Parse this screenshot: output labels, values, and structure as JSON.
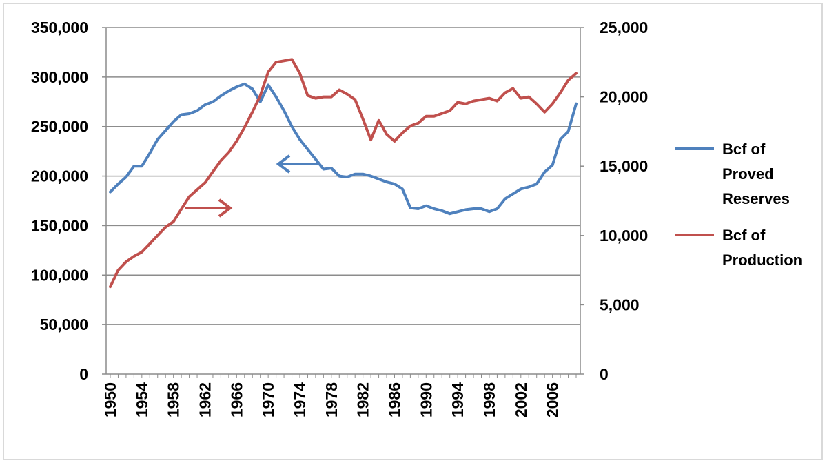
{
  "chart_data": {
    "type": "line",
    "title": "",
    "xlabel": "",
    "ylabel": "",
    "y2label": "",
    "x": [
      1950,
      1951,
      1952,
      1953,
      1954,
      1955,
      1956,
      1957,
      1958,
      1959,
      1960,
      1961,
      1962,
      1963,
      1964,
      1965,
      1966,
      1967,
      1968,
      1969,
      1970,
      1971,
      1972,
      1973,
      1974,
      1975,
      1976,
      1977,
      1978,
      1979,
      1980,
      1981,
      1982,
      1983,
      1984,
      1985,
      1986,
      1987,
      1988,
      1989,
      1990,
      1991,
      1992,
      1993,
      1994,
      1995,
      1996,
      1997,
      1998,
      1999,
      2000,
      2001,
      2002,
      2003,
      2004,
      2005,
      2006,
      2007,
      2008,
      2009
    ],
    "x_tick_labels": [
      "1950",
      "1954",
      "1958",
      "1962",
      "1966",
      "1970",
      "1974",
      "1978",
      "1982",
      "1986",
      "1990",
      "1994",
      "1998",
      "2002",
      "2006"
    ],
    "x_tick_years": [
      1950,
      1954,
      1958,
      1962,
      1966,
      1970,
      1974,
      1978,
      1982,
      1986,
      1990,
      1994,
      1998,
      2002,
      2006
    ],
    "y_left": {
      "range": [
        0,
        350000
      ],
      "ticks": [
        "0",
        "50,000",
        "100,000",
        "150,000",
        "200,000",
        "250,000",
        "300,000",
        "350,000"
      ],
      "tick_values": [
        0,
        50000,
        100000,
        150000,
        200000,
        250000,
        300000,
        350000
      ]
    },
    "y_right": {
      "range": [
        0,
        25000
      ],
      "ticks": [
        "0",
        "5,000",
        "10,000",
        "15,000",
        "20,000",
        "25,000"
      ],
      "tick_values": [
        0,
        5000,
        10000,
        15000,
        20000,
        25000
      ]
    },
    "grid": true,
    "legend_position": "right",
    "series": [
      {
        "name_lines": [
          "Bcf of",
          "Proved",
          "Reserves"
        ],
        "axis": "left",
        "color": "#4f81bd",
        "values": [
          184000,
          192000,
          199000,
          210000,
          210000,
          223000,
          237000,
          246000,
          255000,
          262000,
          263000,
          266000,
          272000,
          275000,
          281000,
          286000,
          290000,
          293000,
          288000,
          275000,
          292000,
          280000,
          266000,
          250000,
          237000,
          227000,
          217000,
          207000,
          208000,
          200000,
          199000,
          202000,
          202000,
          200000,
          197000,
          194000,
          192000,
          187000,
          168000,
          167000,
          170000,
          167000,
          165000,
          162000,
          164000,
          166000,
          167000,
          167000,
          164000,
          167000,
          177000,
          182000,
          187000,
          189000,
          192000,
          204000,
          211000,
          237000,
          245000,
          273000
        ]
      },
      {
        "name_lines": [
          "Bcf of",
          "Production"
        ],
        "axis": "right",
        "color": "#c0504d",
        "values": [
          6300,
          7500,
          8100,
          8500,
          8800,
          9400,
          10000,
          10600,
          11000,
          11900,
          12800,
          13300,
          13800,
          14600,
          15400,
          16000,
          16800,
          17800,
          18900,
          20100,
          21800,
          22500,
          22600,
          22700,
          21700,
          20100,
          19900,
          20000,
          20000,
          20500,
          20200,
          19800,
          18400,
          16900,
          18300,
          17300,
          16800,
          17400,
          17900,
          18100,
          18600,
          18600,
          18800,
          19000,
          19600,
          19500,
          19700,
          19800,
          19900,
          19700,
          20300,
          20600,
          19900,
          20000,
          19500,
          18900,
          19500,
          20300,
          21200,
          21700
        ]
      }
    ],
    "annotations": [
      {
        "type": "arrow",
        "direction": "left",
        "color": "#4f81bd",
        "refers_to": "left-axis"
      },
      {
        "type": "arrow",
        "direction": "right",
        "color": "#c0504d",
        "refers_to": "right-axis"
      }
    ]
  }
}
